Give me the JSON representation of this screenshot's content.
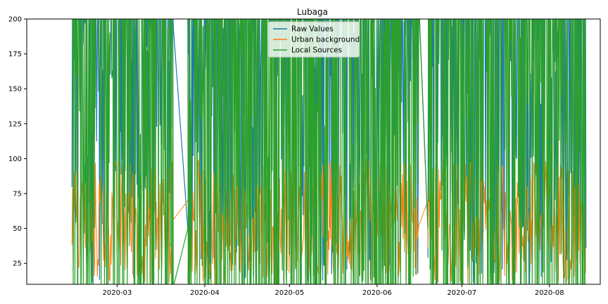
{
  "chart_data": {
    "type": "line",
    "title": "Lubaga",
    "xlabel": "",
    "ylabel": "",
    "ylim": [
      10,
      200
    ],
    "xlim": [
      "2020-01-29",
      "2020-08-19"
    ],
    "x_tick_labels": [
      "2020-03",
      "2020-04",
      "2020-05",
      "2020-06",
      "2020-07",
      "2020-08"
    ],
    "x_tick_dates": [
      "2020-03-01",
      "2020-04-01",
      "2020-05-01",
      "2020-06-01",
      "2020-07-01",
      "2020-08-01"
    ],
    "y_ticks": [
      25,
      50,
      75,
      100,
      125,
      150,
      175,
      200
    ],
    "grid": false,
    "legend": {
      "position": "top-center"
    },
    "colors": {
      "raw": "#1f77b4",
      "background": "#ff7f0e",
      "local": "#2ca02c"
    },
    "series": [
      {
        "name": "Raw Values",
        "color": "#1f77b4",
        "segments": [
          {
            "start": "2020-02-14",
            "end": "2020-03-21",
            "min": 10,
            "max": 200
          },
          {
            "start": "2020-03-26",
            "end": "2020-06-16",
            "min": 10,
            "max": 200
          },
          {
            "start": "2020-06-19",
            "end": "2020-08-14",
            "min": 10,
            "max": 200
          }
        ]
      },
      {
        "name": "Urban background",
        "color": "#ff7f0e",
        "segments": [
          {
            "start": "2020-02-14",
            "end": "2020-03-21",
            "min": 10,
            "max": 200
          },
          {
            "start": "2020-03-26",
            "end": "2020-06-16",
            "min": 10,
            "max": 200
          },
          {
            "start": "2020-06-19",
            "end": "2020-08-14",
            "min": 10,
            "max": 200
          }
        ]
      },
      {
        "name": "Local Sources",
        "color": "#2ca02c",
        "segments": [
          {
            "start": "2020-02-14",
            "end": "2020-03-21",
            "min": 10,
            "max": 200
          },
          {
            "start": "2020-03-26",
            "end": "2020-06-16",
            "min": 10,
            "max": 200
          },
          {
            "start": "2020-06-19",
            "end": "2020-08-14",
            "min": 10,
            "max": 200
          }
        ]
      }
    ]
  }
}
